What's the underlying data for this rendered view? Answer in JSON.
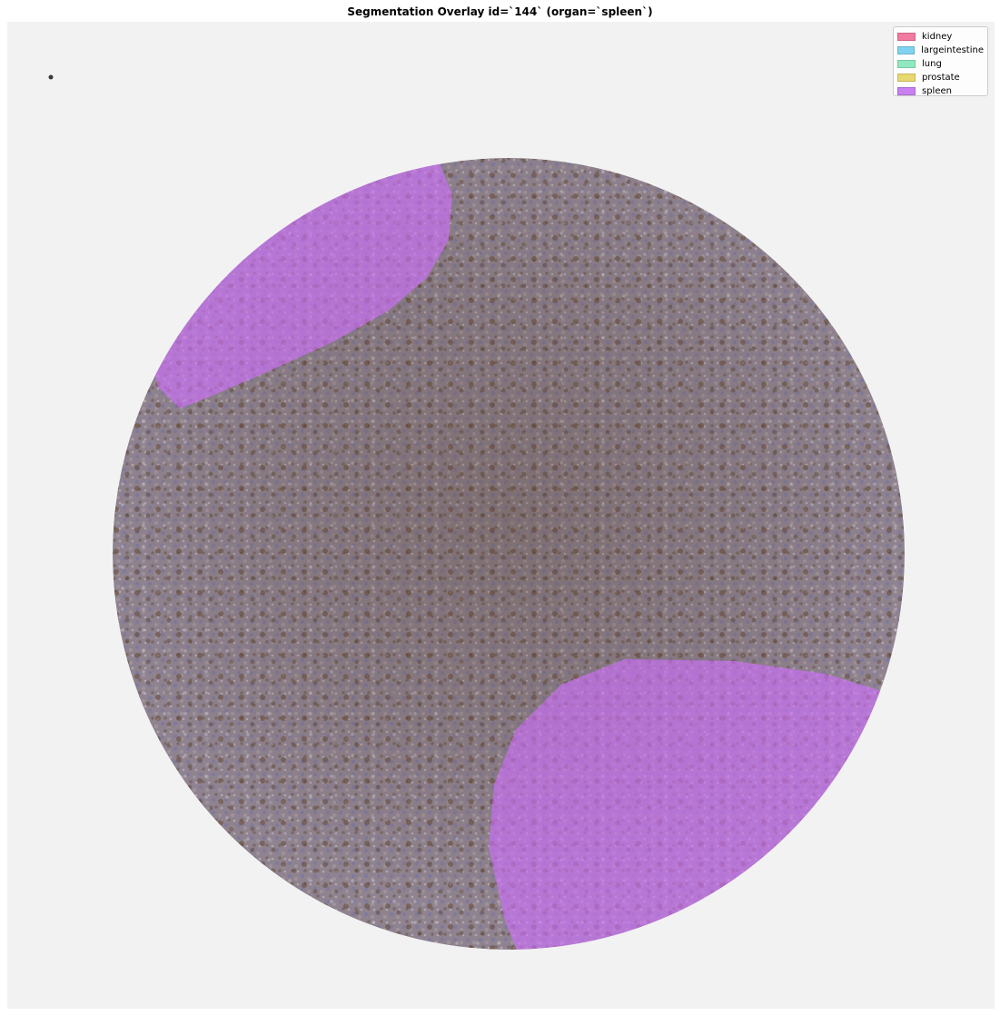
{
  "figure": {
    "title": "Segmentation Overlay id=`144` (organ=`spleen`)"
  },
  "image": {
    "background_color": "#f2f2f2",
    "tissue_color": "#8a7d86",
    "stain_brown": "#6b4a2c",
    "stain_blue": "#7f7aa6",
    "overlay_color": "#d070ff"
  },
  "legend": {
    "items": [
      {
        "label": "kidney",
        "color": "#f07aa0"
      },
      {
        "label": "largeintestine",
        "color": "#7fd3f0"
      },
      {
        "label": "lung",
        "color": "#90e8c0"
      },
      {
        "label": "prostate",
        "color": "#e8d870"
      },
      {
        "label": "spleen",
        "color": "#c880f0"
      }
    ]
  }
}
